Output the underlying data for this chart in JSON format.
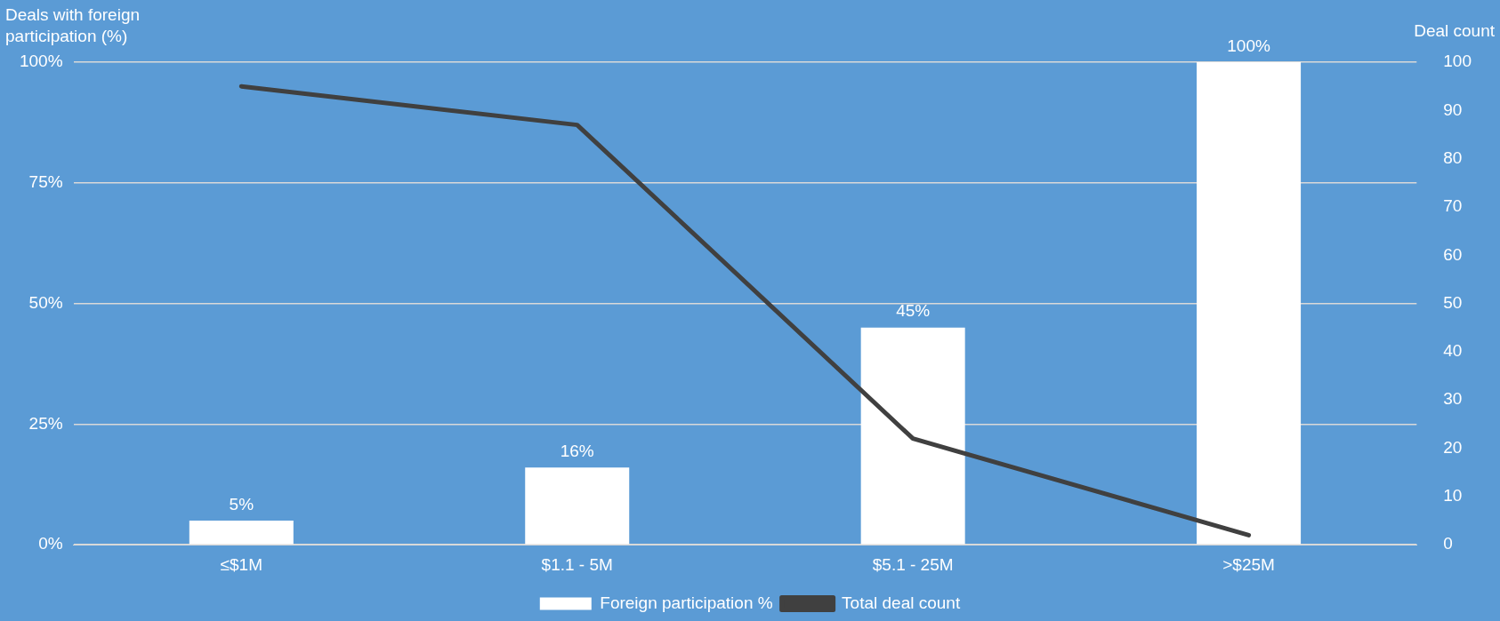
{
  "chart_data": {
    "type": "bar",
    "categories": [
      "≤$1M",
      "$1.1 - 5M",
      "$5.1 - 25M",
      ">$25M"
    ],
    "ylabel": "Deals with foreign participation (%)",
    "y2label": "Deal count",
    "series": [
      {
        "name": "Foreign participation %",
        "color": "#ffffff",
        "values": [
          5,
          16,
          45,
          100
        ],
        "value_labels": [
          "5%",
          "16%",
          "45%",
          "100%"
        ]
      },
      {
        "name": "Total deal count",
        "type": "line",
        "axis": "y2",
        "color": "#404040",
        "values": [
          95,
          87,
          22,
          2
        ]
      }
    ],
    "ylim": [
      0,
      100
    ],
    "yticks": [
      {
        "value": 0,
        "label": "0%"
      },
      {
        "value": 25,
        "label": "25%"
      },
      {
        "value": 50,
        "label": "50%"
      },
      {
        "value": 75,
        "label": "75%"
      },
      {
        "value": 100,
        "label": "100%"
      }
    ],
    "y2lim": [
      0,
      100
    ],
    "y2ticks": [
      0,
      10,
      20,
      30,
      40,
      50,
      60,
      70,
      80,
      90,
      100
    ],
    "grid": "y",
    "legend": "bottom"
  }
}
